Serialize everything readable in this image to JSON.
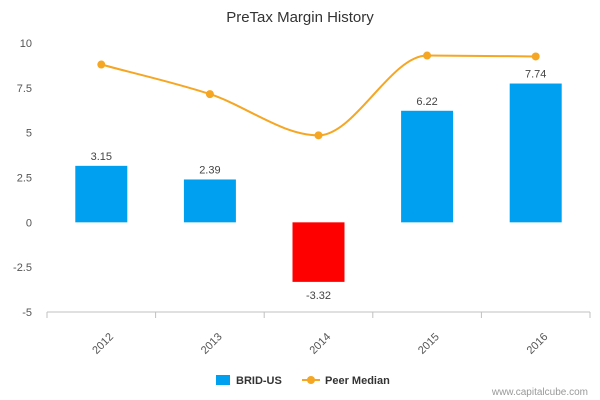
{
  "chart_data": {
    "type": "bar",
    "title": "PreTax Margin History",
    "categories": [
      "2012",
      "2013",
      "2014",
      "2015",
      "2016"
    ],
    "series": [
      {
        "name": "BRID-US",
        "kind": "bar",
        "values": [
          3.15,
          2.39,
          -3.32,
          6.22,
          7.74
        ],
        "data_labels": [
          "3.15",
          "2.39",
          "-3.32",
          "6.22",
          "7.74"
        ],
        "color": "#00a0f0",
        "negative_color": "#ff0000"
      },
      {
        "name": "Peer Median",
        "kind": "line",
        "values": [
          8.8,
          7.15,
          4.85,
          9.3,
          9.25
        ],
        "color": "#f5a623"
      }
    ],
    "y_ticks": [
      "10",
      "7.5",
      "5",
      "2.5",
      "0",
      "-2.5",
      "-5"
    ],
    "ylim": [
      -5,
      10
    ],
    "grid": false,
    "legend_position": "bottom-center"
  },
  "watermark": "www.capitalcube.com"
}
